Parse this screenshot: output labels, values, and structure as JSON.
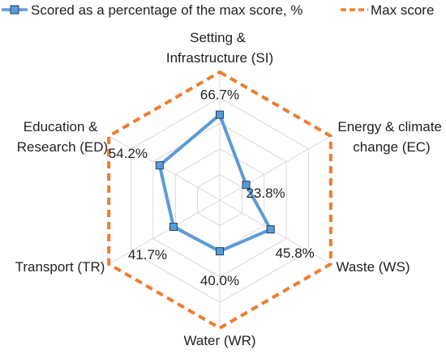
{
  "chart_data": {
    "type": "radar",
    "title": "",
    "categories": [
      "Setting & Infrastructure (SI)",
      "Energy & climate change (EC)",
      "Waste (WS)",
      "Water (WR)",
      "Transport (TR)",
      "Education & Research (ED)"
    ],
    "series": [
      {
        "name": "Scored as a percentage of the max score, %",
        "values": [
          66.7,
          23.8,
          45.8,
          40.0,
          41.7,
          54.2
        ],
        "data_labels": [
          "66.7%",
          "23.8%",
          "45.8%",
          "40.0%",
          "41.7%",
          "54.2%"
        ],
        "color": "#5b9bd5",
        "marker": "square"
      },
      {
        "name": "Max score",
        "values": [
          100,
          100,
          100,
          100,
          100,
          100
        ],
        "color": "#ed7d31",
        "line_style": "dashed"
      }
    ],
    "rlim": [
      0,
      100
    ],
    "grid": true,
    "legend_position": "top"
  }
}
